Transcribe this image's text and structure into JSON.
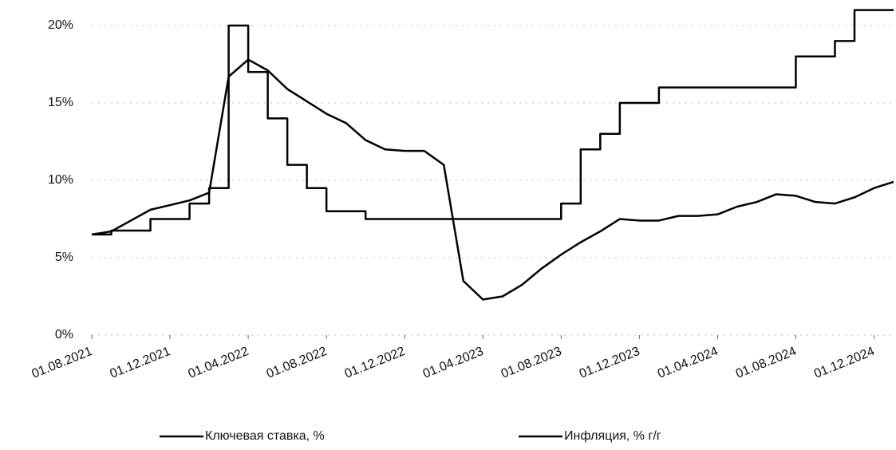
{
  "chart_data": {
    "type": "line",
    "x": [
      "01.08.2021",
      "01.09.2021",
      "01.10.2021",
      "01.11.2021",
      "01.12.2021",
      "01.01.2022",
      "01.02.2022",
      "01.03.2022",
      "01.04.2022",
      "01.05.2022",
      "01.06.2022",
      "01.07.2022",
      "01.08.2022",
      "01.09.2022",
      "01.10.2022",
      "01.11.2022",
      "01.12.2022",
      "01.01.2023",
      "01.02.2023",
      "01.03.2023",
      "01.04.2023",
      "01.05.2023",
      "01.06.2023",
      "01.07.2023",
      "01.08.2023",
      "01.09.2023",
      "01.10.2023",
      "01.11.2023",
      "01.12.2023",
      "01.01.2024",
      "01.02.2024",
      "01.03.2024",
      "01.04.2024",
      "01.05.2024",
      "01.06.2024",
      "01.07.2024",
      "01.08.2024",
      "01.09.2024",
      "01.10.2024",
      "01.11.2024",
      "01.12.2024",
      "01.01.2025"
    ],
    "series": [
      {
        "name": "Ключевая ставка, %",
        "color": "#000000",
        "step": true,
        "values": [
          6.5,
          6.75,
          6.75,
          7.5,
          7.5,
          8.5,
          9.5,
          20,
          17,
          14,
          11,
          9.5,
          8,
          8,
          7.5,
          7.5,
          7.5,
          7.5,
          7.5,
          7.5,
          7.5,
          7.5,
          7.5,
          7.5,
          8.5,
          12,
          13,
          15,
          15,
          16,
          16,
          16,
          16,
          16,
          16,
          16,
          18,
          18,
          19,
          21,
          21,
          21
        ]
      },
      {
        "name": "Инфляция, % г/г",
        "color": "#000000",
        "values": [
          6.5,
          6.7,
          7.4,
          8.1,
          8.4,
          8.7,
          9.2,
          16.7,
          17.8,
          17.1,
          15.9,
          15.1,
          14.3,
          13.7,
          12.6,
          12.0,
          11.9,
          11.9,
          11.0,
          3.5,
          2.3,
          2.5,
          3.25,
          4.3,
          5.2,
          6.0,
          6.7,
          7.5,
          7.4,
          7.4,
          7.7,
          7.7,
          7.8,
          8.3,
          8.6,
          9.1,
          9.0,
          8.6,
          8.5,
          8.9,
          9.5,
          9.9
        ]
      }
    ],
    "xlim": [
      "01.08.2021",
      "01.01.2025"
    ],
    "xticks": [
      "01.08.2021",
      "01.12.2021",
      "01.04.2022",
      "01.08.2022",
      "01.12.2022",
      "01.04.2023",
      "01.08.2023",
      "01.12.2023",
      "01.04.2024",
      "01.08.2024",
      "01.12.2024"
    ],
    "ylim": [
      0,
      21
    ],
    "yticks": [
      {
        "value": 0,
        "label": "0%"
      },
      {
        "value": 5,
        "label": "5%"
      },
      {
        "value": 10,
        "label": "10%"
      },
      {
        "value": 15,
        "label": "15%"
      },
      {
        "value": 20,
        "label": "20%"
      }
    ],
    "grid": true,
    "legend": "bottom"
  }
}
